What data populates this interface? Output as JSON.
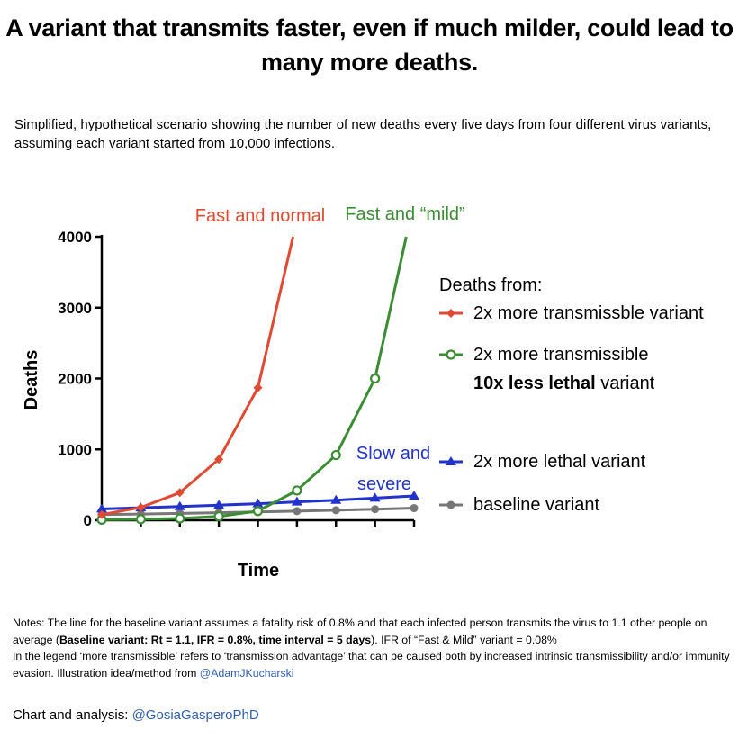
{
  "title_lines": [
    "A variant that transmits faster, even if much milder, could lead to",
    "many more deaths."
  ],
  "subtitle_lines": [
    "Simplified, hypothetical scenario showing the number of new deaths every five days from four different virus variants,",
    "assuming each variant started from 10,000 infections."
  ],
  "notes": {
    "p1_a": "Notes: The line for the baseline variant assumes a fatality risk of 0.8% and that each infected person transmits the virus to 1.1 other people on average (",
    "p1_bold": "Baseline variant: Rt = 1.1, IFR = 0.8%, time interval = 5 days",
    "p1_b": "). IFR of “Fast & Mild” variant = 0.08%",
    "p2_a": "In the legend ‘more transmissible’ refers to ‘transmission advantage’ that can be caused both by increased intrinsic transmissibility and/or immunity evasion. Illustration idea/method from ",
    "p2_link": "@AdamJKucharski"
  },
  "credit": {
    "label": "Chart and analysis: ",
    "handle": "@GosiaGasperoPhD"
  },
  "chart_data": {
    "type": "line",
    "title": "",
    "xlabel": "Time",
    "ylabel": "Deaths",
    "ylim": [
      0,
      4000
    ],
    "xlim": [
      0,
      8
    ],
    "yticks": [
      "0",
      "1000",
      "2000",
      "3000",
      "4000"
    ],
    "grid": false,
    "legend_title": "Deaths from:",
    "legend_placement": "right",
    "series": [
      {
        "name": "2x more transmissble variant",
        "color": "#e04a33",
        "marker": "diamond",
        "annotation": "Fast and normal",
        "x": [
          0,
          1,
          2,
          3,
          4,
          4.9
        ],
        "y": [
          80,
          180,
          390,
          860,
          1870,
          4000
        ]
      },
      {
        "name": "2x more transmissible",
        "name_bold": "10x less lethal",
        "name_suffix": " variant",
        "color": "#3a8d33",
        "marker": "circle-open",
        "annotation": "Fast and “mild”",
        "x": [
          0,
          1,
          2,
          3,
          4,
          5,
          6,
          7,
          7.8
        ],
        "y": [
          8,
          15,
          25,
          55,
          130,
          420,
          920,
          2000,
          4000
        ]
      },
      {
        "name": "2x more lethal variant",
        "color": "#2233cc",
        "marker": "triangle",
        "annotation_lines": [
          "Slow and",
          "severe"
        ],
        "x": [
          0,
          1,
          2,
          3,
          4,
          5,
          6,
          7,
          8
        ],
        "y": [
          160,
          176,
          194,
          213,
          234,
          258,
          283,
          312,
          343
        ]
      },
      {
        "name": "baseline variant",
        "color": "#777777",
        "marker": "circle",
        "x": [
          0,
          1,
          2,
          3,
          4,
          5,
          6,
          7,
          8
        ],
        "y": [
          80,
          88,
          97,
          106,
          117,
          129,
          142,
          156,
          171
        ]
      }
    ]
  }
}
